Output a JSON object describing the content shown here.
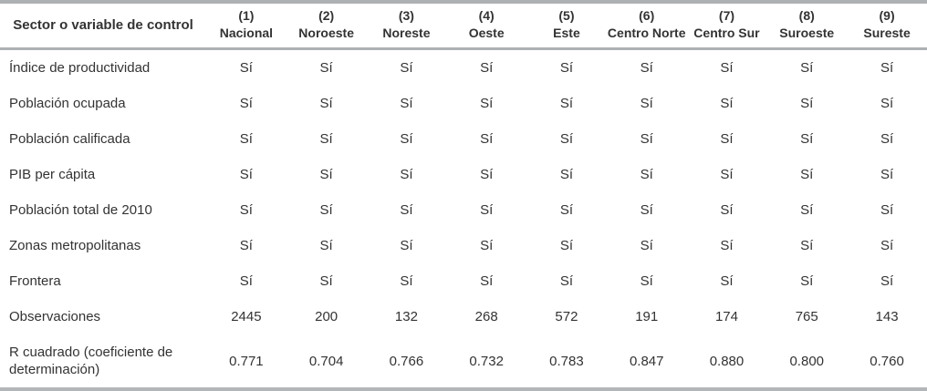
{
  "page": {
    "background": "#ffffff",
    "rule_color": "#aeb1b3",
    "rule_color_light": "#b3b6b8",
    "text_color": "#333333"
  },
  "table": {
    "corner_header": "Sector o variable de control",
    "columns": [
      {
        "number": "(1)",
        "name": "Nacional"
      },
      {
        "number": "(2)",
        "name": "Noroeste"
      },
      {
        "number": "(3)",
        "name": "Noreste"
      },
      {
        "number": "(4)",
        "name": "Oeste"
      },
      {
        "number": "(5)",
        "name": "Este"
      },
      {
        "number": "(6)",
        "name": "Centro Norte"
      },
      {
        "number": "(7)",
        "name": "Centro Sur"
      },
      {
        "number": "(8)",
        "name": "Suroeste"
      },
      {
        "number": "(9)",
        "name": "Sureste"
      }
    ],
    "rows": [
      {
        "label": "Índice de productividad",
        "values": [
          "Sí",
          "Sí",
          "Sí",
          "Sí",
          "Sí",
          "Sí",
          "Sí",
          "Sí",
          "Sí"
        ]
      },
      {
        "label": "Población ocupada",
        "values": [
          "Sí",
          "Sí",
          "Sí",
          "Sí",
          "Sí",
          "Sí",
          "Sí",
          "Sí",
          "Sí"
        ]
      },
      {
        "label": "Población calificada",
        "values": [
          "Sí",
          "Sí",
          "Sí",
          "Sí",
          "Sí",
          "Sí",
          "Sí",
          "Sí",
          "Sí"
        ]
      },
      {
        "label": "PIB per cápita",
        "values": [
          "Sí",
          "Sí",
          "Sí",
          "Sí",
          "Sí",
          "Sí",
          "Sí",
          "Sí",
          "Sí"
        ]
      },
      {
        "label": "Población total de 2010",
        "values": [
          "Sí",
          "Sí",
          "Sí",
          "Sí",
          "Sí",
          "Sí",
          "Sí",
          "Sí",
          "Sí"
        ]
      },
      {
        "label": "Zonas metropolitanas",
        "values": [
          "Sí",
          "Sí",
          "Sí",
          "Sí",
          "Sí",
          "Sí",
          "Sí",
          "Sí",
          "Sí"
        ]
      },
      {
        "label": "Frontera",
        "values": [
          "Sí",
          "Sí",
          "Sí",
          "Sí",
          "Sí",
          "Sí",
          "Sí",
          "Sí",
          "Sí"
        ]
      },
      {
        "label": "Observaciones",
        "values": [
          "2445",
          "200",
          "132",
          "268",
          "572",
          "191",
          "174",
          "765",
          "143"
        ]
      },
      {
        "label": "R cuadrado (coeficiente de determinación)",
        "values": [
          "0.771",
          "0.704",
          "0.766",
          "0.732",
          "0.783",
          "0.847",
          "0.880",
          "0.800",
          "0.760"
        ]
      }
    ]
  }
}
